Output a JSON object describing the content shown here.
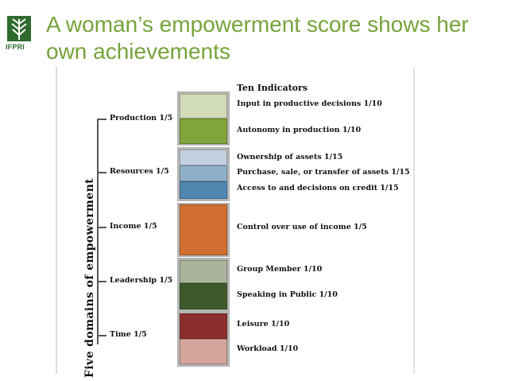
{
  "header": {
    "logo_text": "IFPRI",
    "title": "A woman’s empowerment score shows her own achievements"
  },
  "diagram": {
    "vertical_label": "Five domains of empowerment",
    "heading": "Ten Indicators",
    "domains": [
      {
        "label": "Production 1/5"
      },
      {
        "label": "Resources 1/5"
      },
      {
        "label": "Income 1/5"
      },
      {
        "label": "Leadership 1/5"
      },
      {
        "label": "Time 1/5"
      }
    ],
    "indicators": [
      {
        "label": "Input in productive decisions 1/10",
        "color": "#d2dbb8"
      },
      {
        "label": "Autonomy in production 1/10",
        "color": "#7fa53b"
      },
      {
        "label": "Ownership of assets 1/15",
        "color": "#c4d0e0"
      },
      {
        "label": "Purchase, sale, or transfer of assets 1/15",
        "color": "#8fb0c8"
      },
      {
        "label": "Access to and decisions on credit 1/15",
        "color": "#4e87b0"
      },
      {
        "label": "Control over use of income 1/5",
        "color": "#d06f30"
      },
      {
        "label": "Group Member 1/10",
        "color": "#aab49b"
      },
      {
        "label": "Speaking in Public 1/10",
        "color": "#3e5a2c"
      },
      {
        "label": "Leisure 1/10",
        "color": "#8b2f2c"
      },
      {
        "label": "Workload 1/10",
        "color": "#d2a69c"
      }
    ]
  }
}
